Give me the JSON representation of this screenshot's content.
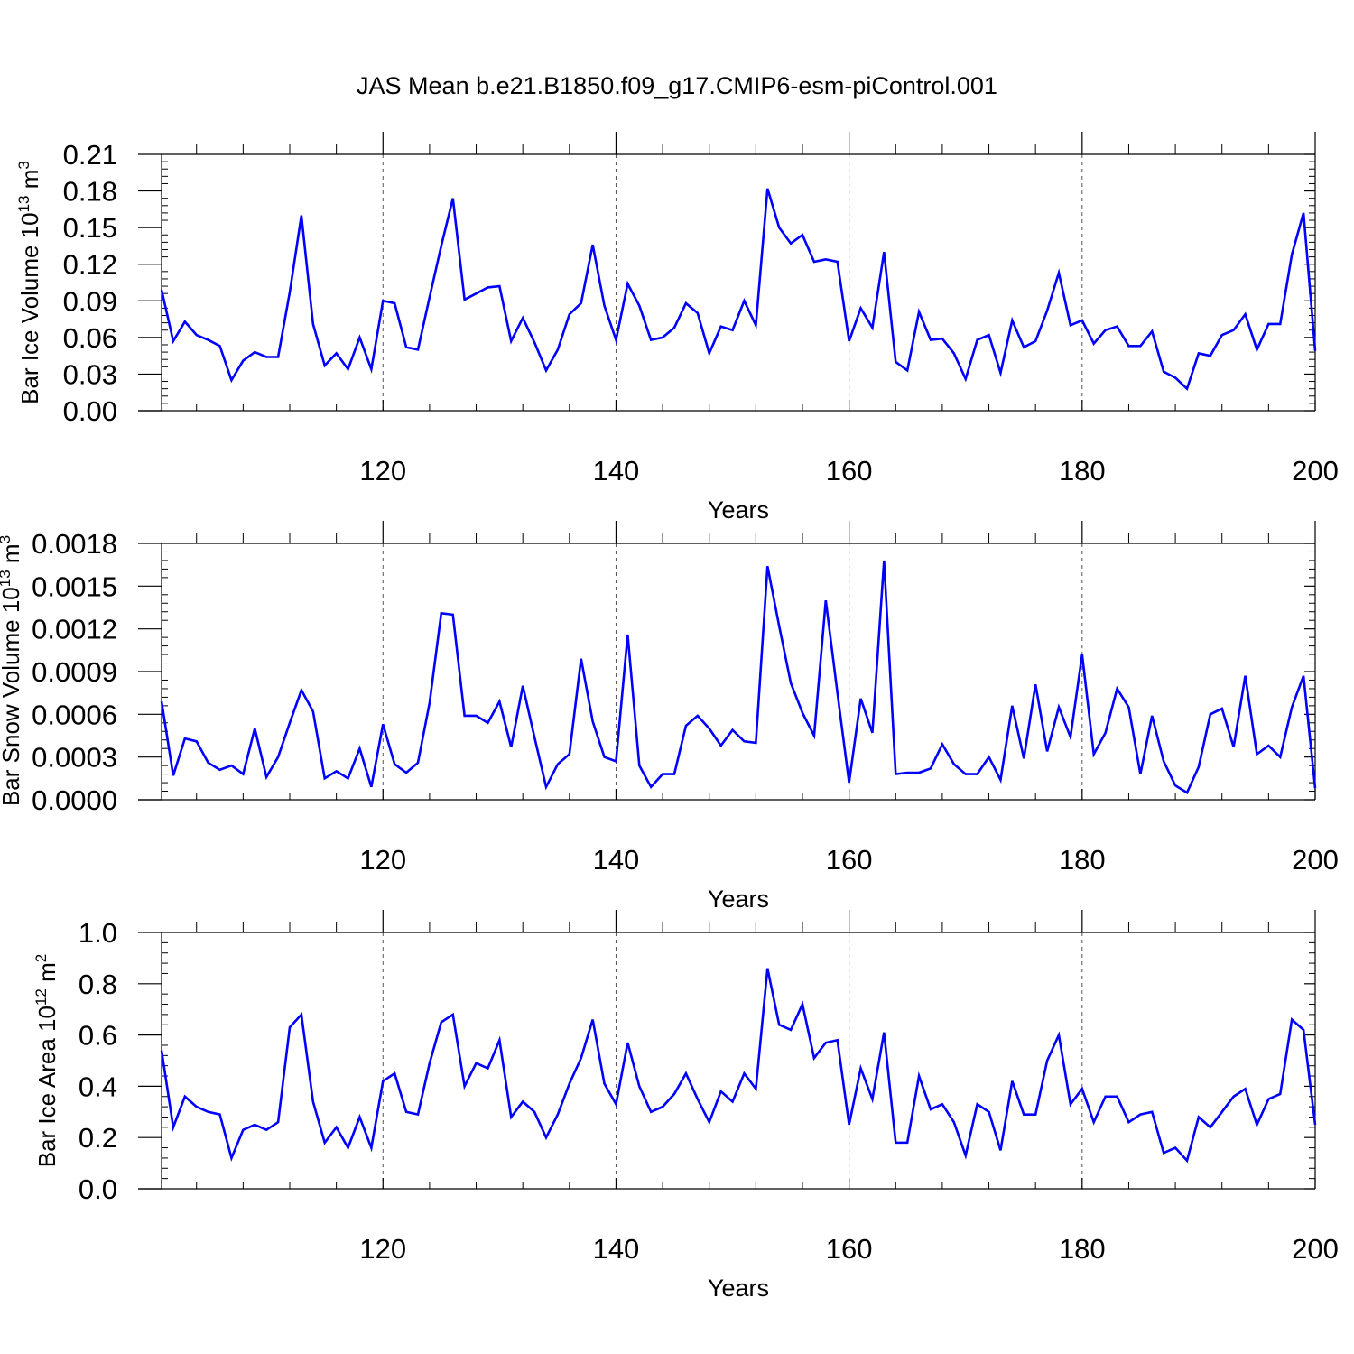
{
  "title": "JAS Mean b.e21.B1850.f09_g17.CMIP6-esm-piControl.001",
  "line_color": "#0000FF",
  "chart_data": [
    {
      "type": "line",
      "ylabel_main": "Bar Ice Volume 10",
      "ylabel_exp": "13",
      "ylabel_unit": " m",
      "ylabel_unit_exp": "3",
      "xlabel": "Years",
      "xlim": [
        101,
        200
      ],
      "ylim": [
        0,
        0.21
      ],
      "xticks": [
        120,
        140,
        160,
        180,
        200
      ],
      "yticks": [
        "0.00",
        "0.03",
        "0.06",
        "0.09",
        "0.12",
        "0.15",
        "0.18",
        "0.21"
      ],
      "grid": "vertical dashed at major x ticks",
      "series": [
        {
          "name": "Bar Ice Volume",
          "x_start": 101,
          "values": [
            0.099,
            0.057,
            0.073,
            0.062,
            0.058,
            0.053,
            0.025,
            0.041,
            0.048,
            0.044,
            0.044,
            0.097,
            0.16,
            0.071,
            0.037,
            0.047,
            0.034,
            0.06,
            0.034,
            0.09,
            0.088,
            0.052,
            0.05,
            0.093,
            0.135,
            0.174,
            0.091,
            0.096,
            0.101,
            0.102,
            0.057,
            0.076,
            0.056,
            0.033,
            0.05,
            0.079,
            0.088,
            0.136,
            0.086,
            0.058,
            0.104,
            0.086,
            0.058,
            0.06,
            0.068,
            0.088,
            0.08,
            0.047,
            0.069,
            0.066,
            0.09,
            0.07,
            0.182,
            0.15,
            0.137,
            0.144,
            0.122,
            0.124,
            0.122,
            0.057,
            0.084,
            0.068,
            0.13,
            0.04,
            0.033,
            0.081,
            0.058,
            0.059,
            0.047,
            0.026,
            0.058,
            0.062,
            0.031,
            0.074,
            0.052,
            0.057,
            0.082,
            0.113,
            0.07,
            0.074,
            0.055,
            0.066,
            0.069,
            0.053,
            0.053,
            0.065,
            0.032,
            0.027,
            0.018,
            0.047,
            0.045,
            0.062,
            0.066,
            0.079,
            0.05,
            0.071,
            0.071,
            0.128,
            0.162,
            0.049
          ]
        }
      ]
    },
    {
      "type": "line",
      "ylabel_main": "Bar Snow Volume 10",
      "ylabel_exp": "13",
      "ylabel_unit": " m",
      "ylabel_unit_exp": "3",
      "xlabel": "Years",
      "xlim": [
        101,
        200
      ],
      "ylim": [
        0,
        0.0018
      ],
      "xticks": [
        120,
        140,
        160,
        180,
        200
      ],
      "yticks": [
        "0.0000",
        "0.0003",
        "0.0006",
        "0.0009",
        "0.0012",
        "0.0015",
        "0.0018"
      ],
      "grid": "vertical dashed at major x ticks",
      "series": [
        {
          "name": "Bar Snow Volume",
          "x_start": 101,
          "values": [
            0.00069,
            0.00017,
            0.00043,
            0.00041,
            0.00026,
            0.00021,
            0.00024,
            0.00018,
            0.0005,
            0.00016,
            0.0003,
            0.00054,
            0.00077,
            0.00062,
            0.00015,
            0.0002,
            0.00015,
            0.00036,
            9e-05,
            0.00053,
            0.00025,
            0.00019,
            0.00026,
            0.00068,
            0.00131,
            0.0013,
            0.00059,
            0.00059,
            0.00054,
            0.00069,
            0.00037,
            0.0008,
            0.00044,
            9e-05,
            0.00025,
            0.00032,
            0.00099,
            0.00055,
            0.0003,
            0.00027,
            0.00116,
            0.00024,
            9e-05,
            0.00018,
            0.00018,
            0.00052,
            0.00059,
            0.0005,
            0.00038,
            0.00049,
            0.00041,
            0.0004,
            0.00164,
            0.00122,
            0.00082,
            0.00061,
            0.00045,
            0.0014,
            0.00075,
            0.00012,
            0.00071,
            0.00047,
            0.00168,
            0.00018,
            0.00019,
            0.00019,
            0.00022,
            0.00039,
            0.00025,
            0.00018,
            0.00018,
            0.0003,
            0.00014,
            0.00066,
            0.00029,
            0.00081,
            0.00034,
            0.00065,
            0.00044,
            0.00102,
            0.00032,
            0.00047,
            0.00078,
            0.00065,
            0.00018,
            0.00059,
            0.00027,
            0.0001,
            5e-05,
            0.00023,
            0.0006,
            0.00064,
            0.00037,
            0.00087,
            0.00032,
            0.00038,
            0.0003,
            0.00065,
            0.00087,
            8e-05
          ]
        }
      ]
    },
    {
      "type": "line",
      "ylabel_main": "Bar Ice Area 10",
      "ylabel_exp": "12",
      "ylabel_unit": " m",
      "ylabel_unit_exp": "2",
      "xlabel": "Years",
      "xlim": [
        101,
        200
      ],
      "ylim": [
        0,
        1.0
      ],
      "xticks": [
        120,
        140,
        160,
        180,
        200
      ],
      "yticks": [
        "0.0",
        "0.2",
        "0.4",
        "0.6",
        "0.8",
        "1.0"
      ],
      "grid": "vertical dashed at major x ticks",
      "series": [
        {
          "name": "Bar Ice Area",
          "x_start": 101,
          "values": [
            0.54,
            0.24,
            0.36,
            0.32,
            0.3,
            0.29,
            0.12,
            0.23,
            0.25,
            0.23,
            0.26,
            0.63,
            0.68,
            0.34,
            0.18,
            0.24,
            0.16,
            0.28,
            0.16,
            0.42,
            0.45,
            0.3,
            0.29,
            0.49,
            0.65,
            0.68,
            0.4,
            0.49,
            0.47,
            0.58,
            0.28,
            0.34,
            0.3,
            0.2,
            0.29,
            0.41,
            0.51,
            0.66,
            0.41,
            0.33,
            0.57,
            0.4,
            0.3,
            0.32,
            0.37,
            0.45,
            0.35,
            0.26,
            0.38,
            0.34,
            0.45,
            0.39,
            0.86,
            0.64,
            0.62,
            0.72,
            0.51,
            0.57,
            0.58,
            0.25,
            0.47,
            0.35,
            0.61,
            0.18,
            0.18,
            0.44,
            0.31,
            0.33,
            0.26,
            0.13,
            0.33,
            0.3,
            0.15,
            0.42,
            0.29,
            0.29,
            0.5,
            0.6,
            0.33,
            0.39,
            0.26,
            0.36,
            0.36,
            0.26,
            0.29,
            0.3,
            0.14,
            0.16,
            0.11,
            0.28,
            0.24,
            0.3,
            0.36,
            0.39,
            0.25,
            0.35,
            0.37,
            0.66,
            0.62,
            0.25
          ]
        }
      ]
    }
  ]
}
